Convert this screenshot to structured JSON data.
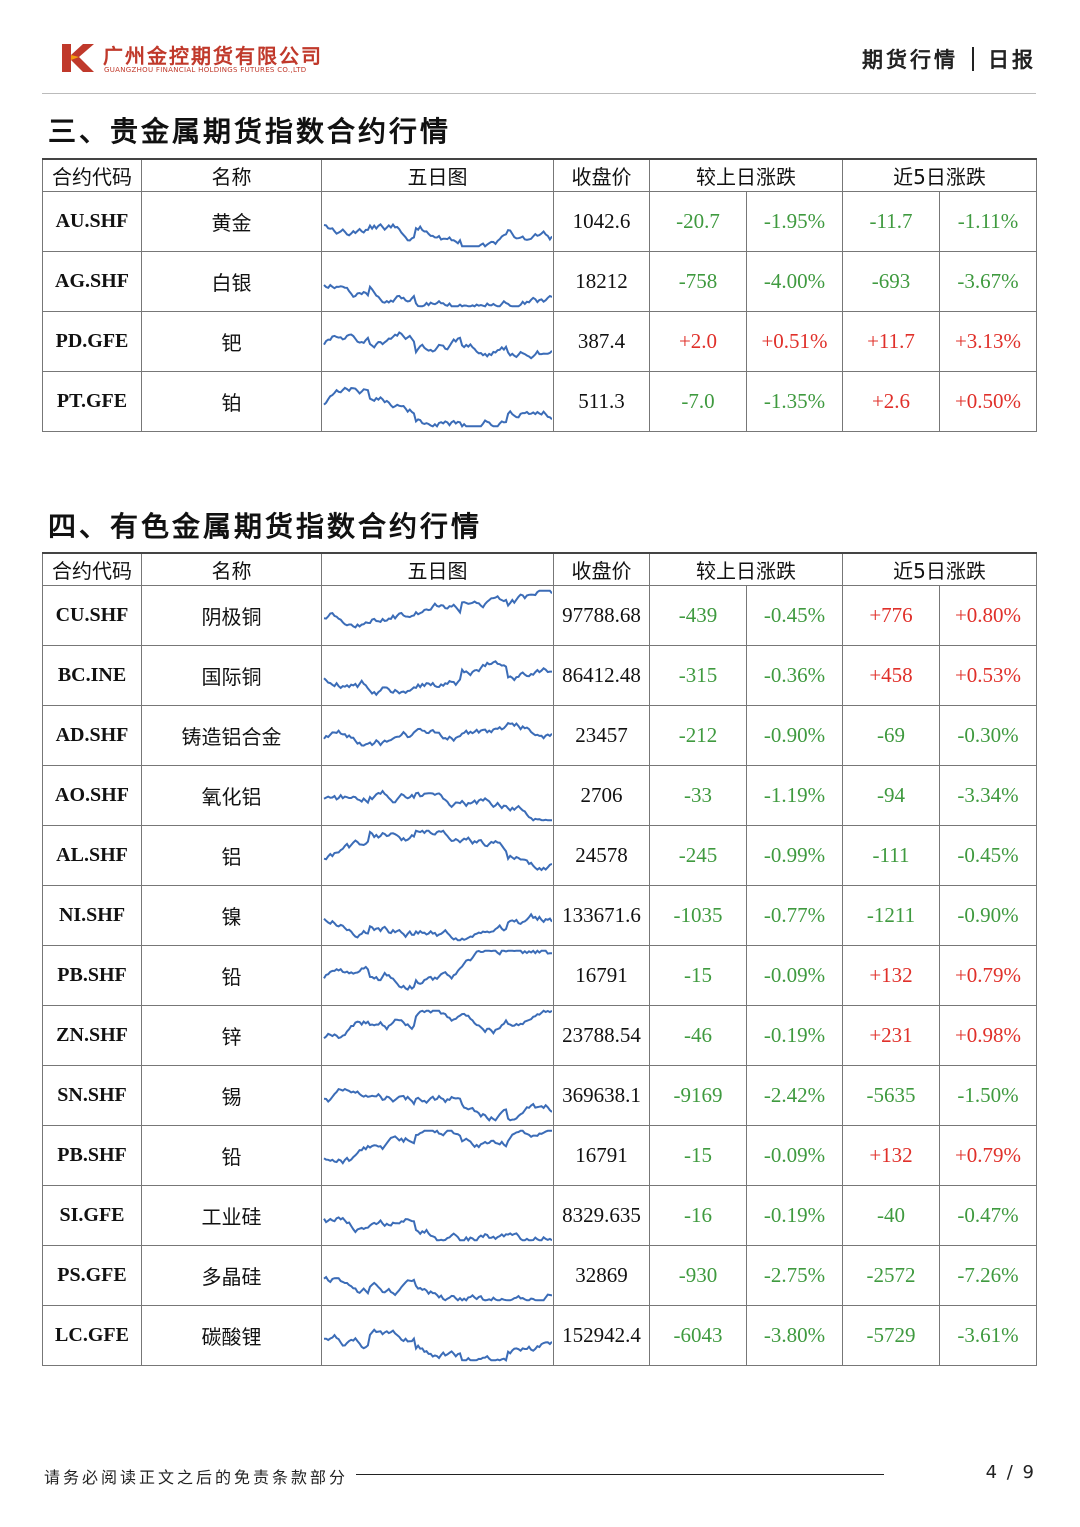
{
  "header": {
    "company_cn": "广州金控期货有限公司",
    "company_en": "GUANGZHOU FINANCIAL HOLDINGS FUTURES CO.,LTD",
    "report_type": "期货行情",
    "report_period": "日报"
  },
  "colors": {
    "brand": "#c0392b",
    "up": "#e0302a",
    "down": "#3f9a3f",
    "sparkline": "#3b6cb7"
  },
  "columns": {
    "code": "合约代码",
    "name": "名称",
    "chart": "五日图",
    "close": "收盘价",
    "daily_change": "较上日涨跌",
    "five_day_change": "近5日涨跌"
  },
  "sections": [
    {
      "title": "三、贵金属期货指数合约行情",
      "rows": [
        {
          "code": "AU.SHF",
          "name": "黄金",
          "close": "1042.6",
          "d_abs": "-20.7",
          "d_pct": "-1.95%",
          "w_abs": "-11.7",
          "w_pct": "-1.11%"
        },
        {
          "code": "AG.SHF",
          "name": "白银",
          "close": "18212",
          "d_abs": "-758",
          "d_pct": "-4.00%",
          "w_abs": "-693",
          "w_pct": "-3.67%"
        },
        {
          "code": "PD.GFE",
          "name": "钯",
          "close": "387.4",
          "d_abs": "+2.0",
          "d_pct": "+0.51%",
          "w_abs": "+11.7",
          "w_pct": "+3.13%"
        },
        {
          "code": "PT.GFE",
          "name": "铂",
          "close": "511.3",
          "d_abs": "-7.0",
          "d_pct": "-1.35%",
          "w_abs": "+2.6",
          "w_pct": "+0.50%"
        }
      ]
    },
    {
      "title": "四、有色金属期货指数合约行情",
      "rows": [
        {
          "code": "CU.SHF",
          "name": "阴极铜",
          "close": "97788.68",
          "d_abs": "-439",
          "d_pct": "-0.45%",
          "w_abs": "+776",
          "w_pct": "+0.80%"
        },
        {
          "code": "BC.INE",
          "name": "国际铜",
          "close": "86412.48",
          "d_abs": "-315",
          "d_pct": "-0.36%",
          "w_abs": "+458",
          "w_pct": "+0.53%"
        },
        {
          "code": "AD.SHF",
          "name": "铸造铝合金",
          "close": "23457",
          "d_abs": "-212",
          "d_pct": "-0.90%",
          "w_abs": "-69",
          "w_pct": "-0.30%"
        },
        {
          "code": "AO.SHF",
          "name": "氧化铝",
          "close": "2706",
          "d_abs": "-33",
          "d_pct": "-1.19%",
          "w_abs": "-94",
          "w_pct": "-3.34%"
        },
        {
          "code": "AL.SHF",
          "name": "铝",
          "close": "24578",
          "d_abs": "-245",
          "d_pct": "-0.99%",
          "w_abs": "-111",
          "w_pct": "-0.45%"
        },
        {
          "code": "NI.SHF",
          "name": "镍",
          "close": "133671.6",
          "d_abs": "-1035",
          "d_pct": "-0.77%",
          "w_abs": "-1211",
          "w_pct": "-0.90%"
        },
        {
          "code": "PB.SHF",
          "name": "铅",
          "close": "16791",
          "d_abs": "-15",
          "d_pct": "-0.09%",
          "w_abs": "+132",
          "w_pct": "+0.79%"
        },
        {
          "code": "ZN.SHF",
          "name": "锌",
          "close": "23788.54",
          "d_abs": "-46",
          "d_pct": "-0.19%",
          "w_abs": "+231",
          "w_pct": "+0.98%"
        },
        {
          "code": "SN.SHF",
          "name": "锡",
          "close": "369638.1",
          "d_abs": "-9169",
          "d_pct": "-2.42%",
          "w_abs": "-5635",
          "w_pct": "-1.50%"
        },
        {
          "code": "PB.SHF",
          "name": "铅",
          "close": "16791",
          "d_abs": "-15",
          "d_pct": "-0.09%",
          "w_abs": "+132",
          "w_pct": "+0.79%"
        },
        {
          "code": "SI.GFE",
          "name": "工业硅",
          "close": "8329.635",
          "d_abs": "-16",
          "d_pct": "-0.19%",
          "w_abs": "-40",
          "w_pct": "-0.47%"
        },
        {
          "code": "PS.GFE",
          "name": "多晶硅",
          "close": "32869",
          "d_abs": "-930",
          "d_pct": "-2.75%",
          "w_abs": "-2572",
          "w_pct": "-7.26%"
        },
        {
          "code": "LC.GFE",
          "name": "碳酸锂",
          "close": "152942.4",
          "d_abs": "-6043",
          "d_pct": "-3.80%",
          "w_abs": "-5729",
          "w_pct": "-3.61%"
        }
      ]
    }
  ],
  "footer": {
    "disclaimer": "请务必阅读正文之后的免责条款部分",
    "page": "4 / 9"
  }
}
